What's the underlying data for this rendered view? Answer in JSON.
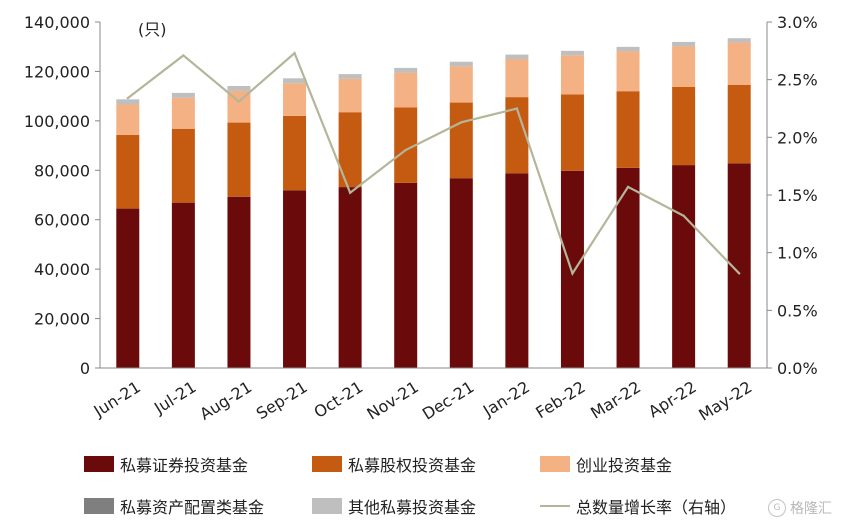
{
  "chart_data": {
    "type": "bar",
    "stacked": true,
    "unit_label": "(只)",
    "categories": [
      "Jun-21",
      "Jul-21",
      "Aug-21",
      "Sep-21",
      "Oct-21",
      "Nov-21",
      "Dec-21",
      "Jan-22",
      "Feb-22",
      "Mar-22",
      "Apr-22",
      "May-22"
    ],
    "ylim_left": [
      0,
      140000
    ],
    "yticks_left": [
      "0",
      "20,000",
      "40,000",
      "60,000",
      "80,000",
      "100,000",
      "120,000",
      "140,000"
    ],
    "ylim_right": [
      0.0,
      3.0
    ],
    "yticks_right": [
      "0.0%",
      "0.5%",
      "1.0%",
      "1.5%",
      "2.0%",
      "2.5%",
      "3.0%"
    ],
    "series": [
      {
        "name": "私募证券投资基金",
        "color": "#6b0a0a",
        "values": [
          64500,
          66900,
          69300,
          71900,
          73200,
          74900,
          76800,
          78800,
          79800,
          81000,
          82100,
          82800
        ]
      },
      {
        "name": "私募股权投资基金",
        "color": "#c55a11",
        "values": [
          29800,
          29900,
          30000,
          30100,
          30300,
          30500,
          30600,
          30800,
          30900,
          31000,
          31600,
          31800
        ]
      },
      {
        "name": "创业投资基金",
        "color": "#f4b183",
        "values": [
          12300,
          12500,
          12800,
          13200,
          13500,
          14100,
          14700,
          15400,
          15800,
          16200,
          16500,
          17100
        ]
      },
      {
        "name": "私募资产配置类基金",
        "color": "#7f7f7f",
        "values": [
          10,
          15,
          18,
          20,
          22,
          25,
          28,
          30,
          32,
          34,
          36,
          38
        ]
      },
      {
        "name": "其他私募投资基金",
        "color": "#bfbfbf",
        "values": [
          2100,
          2000,
          2000,
          2000,
          1900,
          1900,
          1800,
          1800,
          1800,
          1700,
          1700,
          1700
        ]
      }
    ],
    "line_series": {
      "name": "总数量增长率（右轴）",
      "color": "#b5b59a",
      "axis": "right",
      "values": [
        2.34,
        2.71,
        2.31,
        2.73,
        1.52,
        1.89,
        2.13,
        2.25,
        0.82,
        1.57,
        1.32,
        0.82
      ]
    }
  },
  "watermark": {
    "text": "格隆汇",
    "icon": "logo-icon"
  }
}
